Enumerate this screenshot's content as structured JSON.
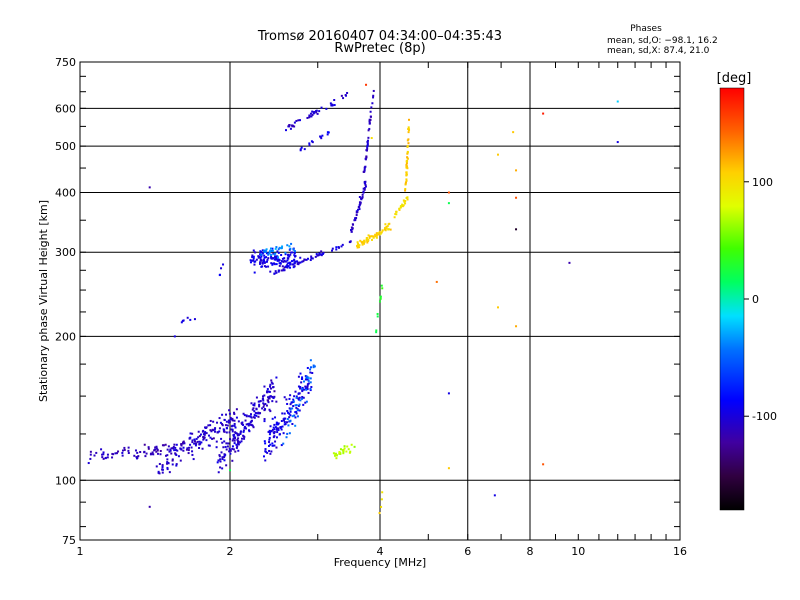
{
  "chart_data": {
    "type": "scatter",
    "title_line1": "Tromsø 20160407 04:34:00–04:35:43",
    "title_line2": "RwPretec (8p)",
    "xlabel": "Frequency [MHz]",
    "ylabel": "Stationary phase Virtual Height [km]",
    "x_scale": "log",
    "y_scale": "log",
    "xlim": [
      1,
      16
    ],
    "ylim": [
      75,
      750
    ],
    "x_ticks": [
      1,
      2,
      4,
      6,
      8,
      10,
      16
    ],
    "y_ticks": [
      75,
      100,
      200,
      300,
      400,
      500,
      600,
      750
    ],
    "x_grid": [
      2,
      4,
      6,
      8
    ],
    "y_grid": [
      100,
      200,
      300,
      400,
      500,
      600
    ],
    "grid": true,
    "legend": {
      "title": "Phases",
      "line1": "mean, sd,O: −98.1, 16.2",
      "line2": "mean, sd,X:  87.4, 21.0"
    },
    "colorbar": {
      "label": "[deg]",
      "min": -180,
      "max": 180,
      "ticks": [
        100,
        0,
        -100
      ],
      "tick_labels": [
        "100",
        "0",
        "-100"
      ]
    },
    "series": [
      {
        "traces": [
          {
            "x0": 1.02,
            "x1": 1.55,
            "y0": 112,
            "y1": 116,
            "n": 70,
            "spread": 0.045,
            "phase": -115
          },
          {
            "x0": 1.45,
            "x1": 2.05,
            "y0": 108,
            "y1": 135,
            "n": 170,
            "spread": 0.09,
            "phase": -110
          },
          {
            "x0": 1.9,
            "x1": 2.45,
            "y0": 110,
            "y1": 155,
            "n": 190,
            "spread": 0.1,
            "phase": -108
          },
          {
            "x0": 2.35,
            "x1": 2.9,
            "y0": 115,
            "y1": 165,
            "n": 150,
            "spread": 0.1,
            "phase": -100
          },
          {
            "x0": 2.6,
            "x1": 2.95,
            "y0": 125,
            "y1": 175,
            "n": 40,
            "spread": 0.08,
            "phase": -50
          },
          {
            "x0": 3.2,
            "x1": 3.55,
            "y0": 113,
            "y1": 117,
            "n": 28,
            "spread": 0.03,
            "phase": 70
          },
          {
            "x0": 2.2,
            "x1": 2.75,
            "y0": 290,
            "y1": 290,
            "n": 130,
            "spread": 0.07,
            "phase": -100
          },
          {
            "x0": 2.3,
            "x1": 2.7,
            "y0": 300,
            "y1": 305,
            "n": 35,
            "spread": 0.04,
            "phase": -40
          },
          {
            "x0": 2.45,
            "x1": 3.5,
            "y0": 272,
            "y1": 315,
            "n": 60,
            "spread": 0.015,
            "phase": -105
          },
          {
            "x0": 3.5,
            "x1": 3.75,
            "y0": 330,
            "y1": 420,
            "n": 45,
            "spread": 0.02,
            "phase": -108
          },
          {
            "x0": 3.72,
            "x1": 3.88,
            "y0": 440,
            "y1": 650,
            "n": 40,
            "spread": 0.015,
            "phase": -110
          },
          {
            "x0": 2.55,
            "x1": 3.45,
            "y0": 540,
            "y1": 640,
            "n": 45,
            "spread": 0.025,
            "phase": -108
          },
          {
            "x0": 2.75,
            "x1": 3.2,
            "y0": 490,
            "y1": 540,
            "n": 15,
            "spread": 0.02,
            "phase": -100
          },
          {
            "x0": 3.6,
            "x1": 4.2,
            "y0": 310,
            "y1": 340,
            "n": 70,
            "spread": 0.025,
            "phase": 105
          },
          {
            "x0": 4.2,
            "x1": 4.55,
            "y0": 350,
            "y1": 390,
            "n": 20,
            "spread": 0.02,
            "phase": 100
          },
          {
            "x0": 4.5,
            "x1": 4.58,
            "y0": 400,
            "y1": 570,
            "n": 40,
            "spread": 0.015,
            "phase": 110
          },
          {
            "x0": 1.6,
            "x1": 1.75,
            "y0": 215,
            "y1": 222,
            "n": 6,
            "spread": 0.02,
            "phase": -100
          },
          {
            "x0": 1.9,
            "x1": 1.95,
            "y0": 265,
            "y1": 290,
            "n": 4,
            "spread": 0.02,
            "phase": -100
          },
          {
            "x0": 3.9,
            "x1": 4.05,
            "y0": 195,
            "y1": 260,
            "n": 10,
            "spread": 0.02,
            "phase": 30
          },
          {
            "x0": 4.0,
            "x1": 4.05,
            "y0": 85,
            "y1": 95,
            "n": 4,
            "spread": 0.02,
            "phase": 100
          }
        ]
      }
    ],
    "isolated_points": [
      {
        "x": 1.38,
        "y": 410,
        "phase": -120
      },
      {
        "x": 1.55,
        "y": 200,
        "phase": -100
      },
      {
        "x": 1.38,
        "y": 88,
        "phase": -120
      },
      {
        "x": 2.0,
        "y": 105,
        "phase": 20
      },
      {
        "x": 3.75,
        "y": 672,
        "phase": 160
      },
      {
        "x": 3.85,
        "y": 520,
        "phase": 100
      },
      {
        "x": 5.2,
        "y": 260,
        "phase": 140
      },
      {
        "x": 5.5,
        "y": 400,
        "phase": 150
      },
      {
        "x": 5.5,
        "y": 380,
        "phase": 20
      },
      {
        "x": 5.5,
        "y": 152,
        "phase": -100
      },
      {
        "x": 5.5,
        "y": 106,
        "phase": 110
      },
      {
        "x": 6.9,
        "y": 480,
        "phase": 110
      },
      {
        "x": 6.9,
        "y": 230,
        "phase": 110
      },
      {
        "x": 6.8,
        "y": 93,
        "phase": -100
      },
      {
        "x": 7.4,
        "y": 535,
        "phase": 110
      },
      {
        "x": 7.5,
        "y": 445,
        "phase": 120
      },
      {
        "x": 7.5,
        "y": 390,
        "phase": 150
      },
      {
        "x": 7.5,
        "y": 335,
        "phase": -160
      },
      {
        "x": 7.5,
        "y": 210,
        "phase": 120
      },
      {
        "x": 8.5,
        "y": 585,
        "phase": 170
      },
      {
        "x": 8.5,
        "y": 108,
        "phase": 150
      },
      {
        "x": 9.6,
        "y": 285,
        "phase": -120
      },
      {
        "x": 12.0,
        "y": 620,
        "phase": -20
      },
      {
        "x": 12.0,
        "y": 510,
        "phase": -100
      }
    ]
  }
}
